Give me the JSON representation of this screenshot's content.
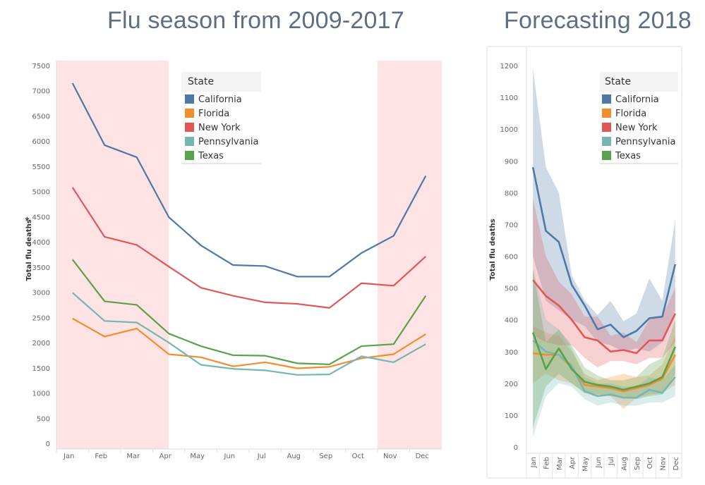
{
  "colors": {
    "California": "#4e79a7",
    "Florida": "#f28e2b",
    "New York": "#e15759",
    "Pennsylvania": "#76b7b2",
    "Texas": "#59a14f",
    "highlight": "#fde3e3"
  },
  "chart_data": [
    {
      "type": "line",
      "title": "Flu season from 2009-2017",
      "ylabel": "Total flu deaths",
      "xlabel": "",
      "categories": [
        "Jan",
        "Feb",
        "Mar",
        "Apr",
        "May",
        "Jun",
        "Jul",
        "Aug",
        "Sep",
        "Oct",
        "Nov",
        "Dec"
      ],
      "ylim": [
        0,
        7500
      ],
      "yticks": [
        0,
        500,
        1000,
        1500,
        2000,
        2500,
        3000,
        3500,
        4000,
        4500,
        5000,
        5500,
        6000,
        6500,
        7000,
        7500
      ],
      "highlight_bands": [
        [
          "Jan",
          "Apr"
        ],
        [
          "Oct",
          "Dec"
        ]
      ],
      "legend_title": "State",
      "legend_position": "top-center",
      "series": [
        {
          "name": "California",
          "values": [
            7150,
            5920,
            5680,
            4490,
            3930,
            3540,
            3520,
            3310,
            3310,
            3780,
            4120,
            5310
          ]
        },
        {
          "name": "Florida",
          "values": [
            2480,
            2120,
            2280,
            1770,
            1710,
            1530,
            1610,
            1490,
            1520,
            1690,
            1770,
            2170
          ]
        },
        {
          "name": "New York",
          "values": [
            5080,
            4100,
            3940,
            3510,
            3090,
            2930,
            2800,
            2770,
            2690,
            3180,
            3130,
            3710
          ]
        },
        {
          "name": "Pennsylvania",
          "values": [
            2990,
            2430,
            2400,
            2000,
            1560,
            1480,
            1450,
            1360,
            1370,
            1730,
            1610,
            1970
          ]
        },
        {
          "name": "Texas",
          "values": [
            3650,
            2820,
            2750,
            2180,
            1930,
            1750,
            1740,
            1590,
            1570,
            1930,
            1970,
            2930
          ]
        }
      ]
    },
    {
      "type": "line",
      "title": "Forecasting 2018",
      "ylabel": "Total flu deaths",
      "xlabel": "",
      "categories": [
        "Jan",
        "Feb",
        "Mar",
        "Apr",
        "May",
        "Jun",
        "Jul",
        "Aug",
        "Sep",
        "Oct",
        "Nov",
        "Dec"
      ],
      "ylim": [
        0,
        1200
      ],
      "yticks": [
        0,
        100,
        200,
        300,
        400,
        500,
        600,
        700,
        800,
        900,
        1000,
        1100,
        1200
      ],
      "legend_title": "State",
      "legend_position": "top-right",
      "bands": "forecast interval",
      "series": [
        {
          "name": "California",
          "values": [
            880,
            680,
            645,
            510,
            445,
            370,
            385,
            345,
            365,
            405,
            410,
            575
          ],
          "lower": [
            600,
            460,
            430,
            400,
            380,
            330,
            320,
            300,
            310,
            300,
            330,
            430
          ],
          "upper": [
            1190,
            880,
            800,
            540,
            460,
            415,
            460,
            395,
            420,
            530,
            460,
            715
          ]
        },
        {
          "name": "Florida",
          "values": [
            295,
            290,
            290,
            250,
            195,
            190,
            185,
            175,
            185,
            195,
            215,
            290
          ],
          "lower": [
            200,
            230,
            210,
            200,
            170,
            165,
            160,
            120,
            155,
            165,
            170,
            195
          ],
          "upper": [
            380,
            360,
            350,
            300,
            230,
            210,
            220,
            230,
            220,
            225,
            260,
            350
          ]
        },
        {
          "name": "New York",
          "values": [
            525,
            475,
            445,
            400,
            345,
            335,
            300,
            305,
            295,
            335,
            335,
            420
          ],
          "lower": [
            350,
            330,
            320,
            320,
            280,
            250,
            270,
            270,
            260,
            280,
            280,
            330
          ],
          "upper": [
            780,
            600,
            520,
            480,
            410,
            410,
            350,
            360,
            330,
            400,
            410,
            500
          ]
        },
        {
          "name": "Pennsylvania",
          "values": [
            335,
            300,
            290,
            255,
            175,
            160,
            165,
            155,
            155,
            180,
            170,
            220
          ],
          "lower": [
            30,
            160,
            200,
            190,
            150,
            130,
            140,
            130,
            130,
            140,
            140,
            160
          ],
          "upper": [
            560,
            400,
            370,
            310,
            220,
            200,
            200,
            190,
            190,
            220,
            210,
            260
          ]
        },
        {
          "name": "Texas",
          "values": [
            360,
            245,
            310,
            245,
            205,
            195,
            190,
            180,
            190,
            200,
            220,
            315
          ],
          "lower": [
            60,
            190,
            230,
            200,
            170,
            165,
            160,
            155,
            150,
            160,
            165,
            230
          ],
          "upper": [
            560,
            330,
            370,
            320,
            250,
            225,
            210,
            210,
            220,
            260,
            280,
            400
          ]
        }
      ]
    }
  ]
}
